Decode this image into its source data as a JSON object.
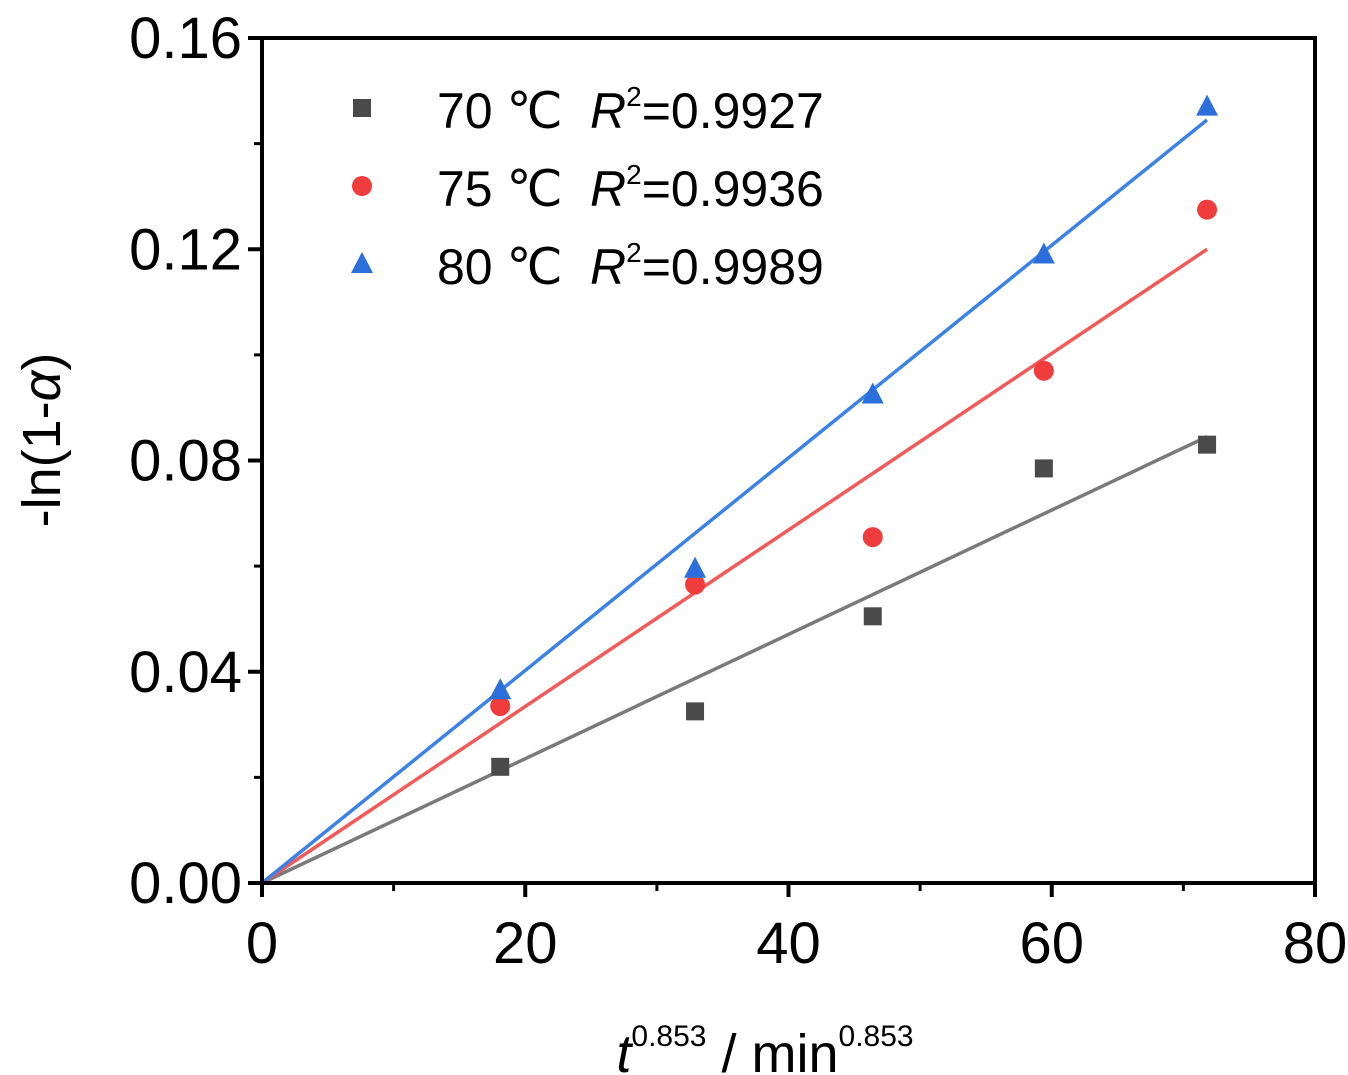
{
  "chart_data": {
    "type": "scatter",
    "xlabel": {
      "var": "t",
      "exp": "0.853",
      "unit": " / min",
      "unit_exp": "0.853"
    },
    "ylabel": {
      "prefix": "-ln(1-",
      "var": "α",
      "suffix": ")"
    },
    "xlim": [
      0,
      80
    ],
    "ylim": [
      0,
      0.16
    ],
    "x_ticks": [
      "0",
      "20",
      "40",
      "60",
      "80"
    ],
    "y_ticks": [
      "0.00",
      "0.04",
      "0.08",
      "0.12",
      "0.16"
    ],
    "x_tick_values": [
      0,
      20,
      40,
      60,
      80
    ],
    "y_tick_values": [
      0,
      0.04,
      0.08,
      0.12,
      0.16
    ],
    "legend_position": "top-left",
    "series": [
      {
        "name": "70 ℃",
        "r2_label": "R",
        "r2_exp": "2",
        "r2_value": "=0.9927",
        "marker": "square",
        "color": "#4a4a4a",
        "line_color": "#7a7a7a",
        "x": [
          18.1,
          32.9,
          46.4,
          59.4,
          71.8
        ],
        "y": [
          0.022,
          0.0325,
          0.0505,
          0.0785,
          0.083
        ],
        "fit": {
          "x": [
            0,
            71.8
          ],
          "y": [
            0,
            0.0845
          ]
        }
      },
      {
        "name": "75 ℃",
        "r2_label": "R",
        "r2_exp": "2",
        "r2_value": "=0.9936",
        "marker": "circle",
        "color": "#f03c3c",
        "line_color": "#f25a5a",
        "x": [
          18.1,
          32.9,
          46.4,
          59.4,
          71.8
        ],
        "y": [
          0.0335,
          0.0565,
          0.0655,
          0.097,
          0.1275
        ],
        "fit": {
          "x": [
            0,
            71.8
          ],
          "y": [
            0,
            0.12
          ]
        }
      },
      {
        "name": "80 ℃",
        "r2_label": "R",
        "r2_exp": "2",
        "r2_value": "=0.9989",
        "marker": "triangle",
        "color": "#2a6fdc",
        "line_color": "#3c82e6",
        "x": [
          18.1,
          32.9,
          46.4,
          59.4,
          71.8
        ],
        "y": [
          0.0365,
          0.0595,
          0.0925,
          0.119,
          0.147
        ],
        "fit": {
          "x": [
            0,
            71.8
          ],
          "y": [
            0,
            0.1445
          ]
        }
      }
    ]
  }
}
